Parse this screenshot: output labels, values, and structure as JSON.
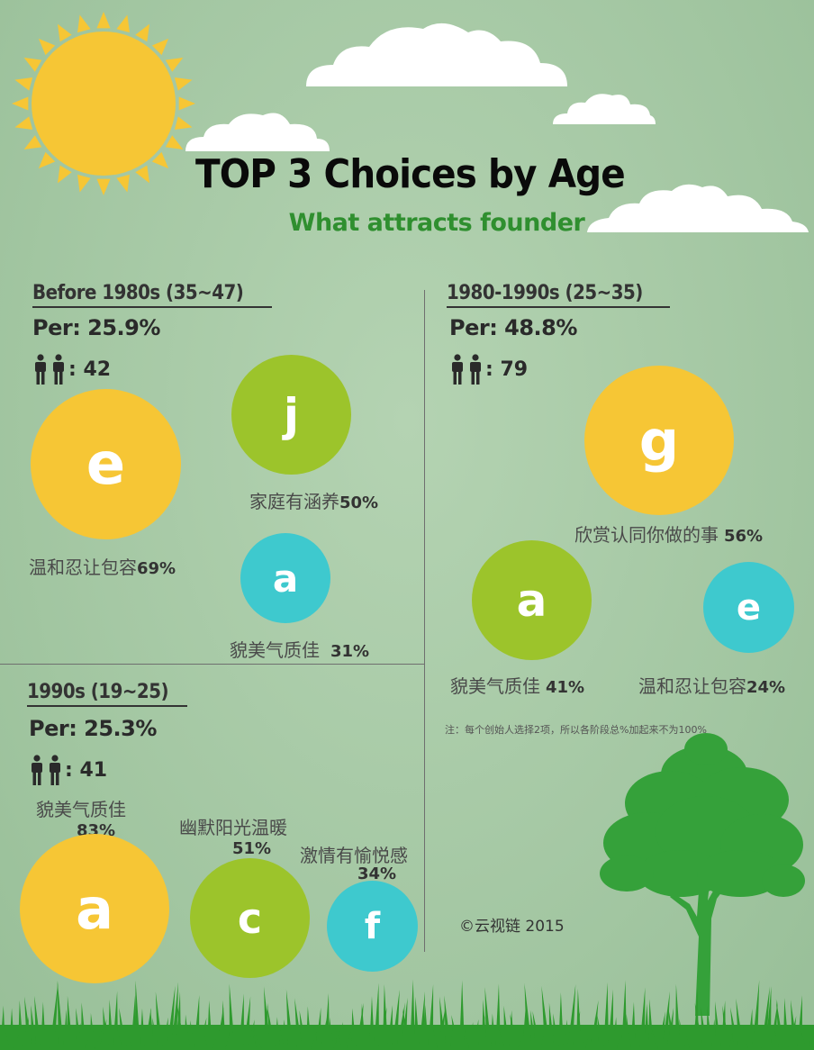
{
  "header": {
    "title": "TOP 3 Choices by Age",
    "subtitle": "What attracts founder"
  },
  "sections": [
    {
      "heading": "Before 1980s (35~47)",
      "per": "Per: 25.9%",
      "count": ": 42",
      "items": [
        {
          "letter": "e",
          "label": "温和忍让包容",
          "pct": "69%",
          "color": "#f6c635"
        },
        {
          "letter": "j",
          "label": "家庭有涵养",
          "pct": "50%",
          "color": "#9cc42b"
        },
        {
          "letter": "a",
          "label": "貌美气质佳",
          "pct": "31%",
          "color": "#3ec9ce"
        }
      ]
    },
    {
      "heading": "1980-1990s (25~35)",
      "per": "Per: 48.8%",
      "count": ": 79",
      "items": [
        {
          "letter": "g",
          "label": "欣赏认同你做的事",
          "pct": "56%",
          "color": "#f6c635"
        },
        {
          "letter": "a",
          "label": "貌美气质佳",
          "pct": "41%",
          "color": "#9cc42b"
        },
        {
          "letter": "e",
          "label": "温和忍让包容",
          "pct": "24%",
          "color": "#3ec9ce"
        }
      ]
    },
    {
      "heading": "1990s (19~25)",
      "per": "Per: 25.3%",
      "count": ": 41",
      "items": [
        {
          "letter": "a",
          "label": "貌美气质佳",
          "pct": "83%",
          "color": "#f6c635"
        },
        {
          "letter": "c",
          "label": "幽默阳光温暖",
          "pct": "51%",
          "color": "#9cc42b"
        },
        {
          "letter": "f",
          "label": "激情有愉悦感",
          "pct": "34%",
          "color": "#3ec9ce"
        }
      ]
    }
  ],
  "note": "注：每个创始人选择2项，所以各阶段总%加起来不为100%",
  "copyright": "©云视链  2015",
  "icons": [
    "sun-icon",
    "cloud-icon",
    "people-icon",
    "tree-icon",
    "grass-icon"
  ]
}
